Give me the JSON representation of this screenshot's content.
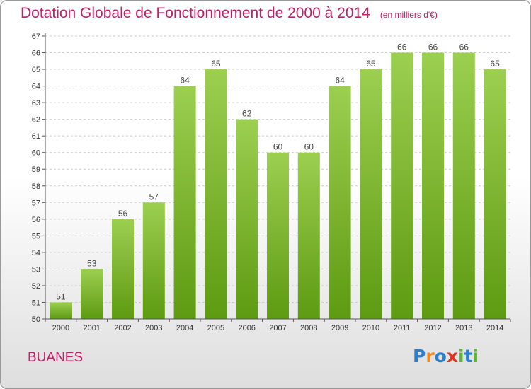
{
  "title": "Dotation Globale de Fonctionnement de 2000 à 2014",
  "unit_note": "(en milliers d'€)",
  "place_name": "BUANES",
  "logo": {
    "text": "Proxiti",
    "letters": [
      "P",
      "r",
      "o",
      "x",
      "i",
      "t",
      "i"
    ],
    "colors": [
      "#2a7fd0",
      "#f08a1c",
      "#2a7fd0",
      "#e0301e",
      "#5ab82e",
      "#2a7fd0",
      "#5ab82e"
    ]
  },
  "colors": {
    "bar_top": "#9ccf50",
    "bar_bottom": "#5e9a12",
    "title": "#c0206a",
    "axis": "#555555",
    "grid": "#cccccc"
  },
  "chart_data": {
    "type": "bar",
    "categories": [
      "2000",
      "2001",
      "2002",
      "2003",
      "2004",
      "2005",
      "2006",
      "2007",
      "2008",
      "2009",
      "2010",
      "2011",
      "2012",
      "2013",
      "2014"
    ],
    "values": [
      51,
      53,
      56,
      57,
      64,
      65,
      62,
      60,
      60,
      64,
      65,
      66,
      66,
      66,
      65
    ],
    "data_labels": [
      "51",
      "53",
      "56",
      "57",
      "64",
      "65",
      "62",
      "60",
      "60",
      "64",
      "65",
      "66",
      "66",
      "66",
      "65"
    ],
    "y_ticks": [
      "50",
      "51",
      "52",
      "53",
      "54",
      "55",
      "56",
      "57",
      "58",
      "59",
      "60",
      "61",
      "62",
      "63",
      "64",
      "65",
      "66",
      "67"
    ],
    "ylim": [
      50,
      67
    ],
    "grid": true,
    "title": "Dotation Globale de Fonctionnement de 2000 à 2014",
    "ylabel": "(en milliers d'€)",
    "xlabel": ""
  }
}
